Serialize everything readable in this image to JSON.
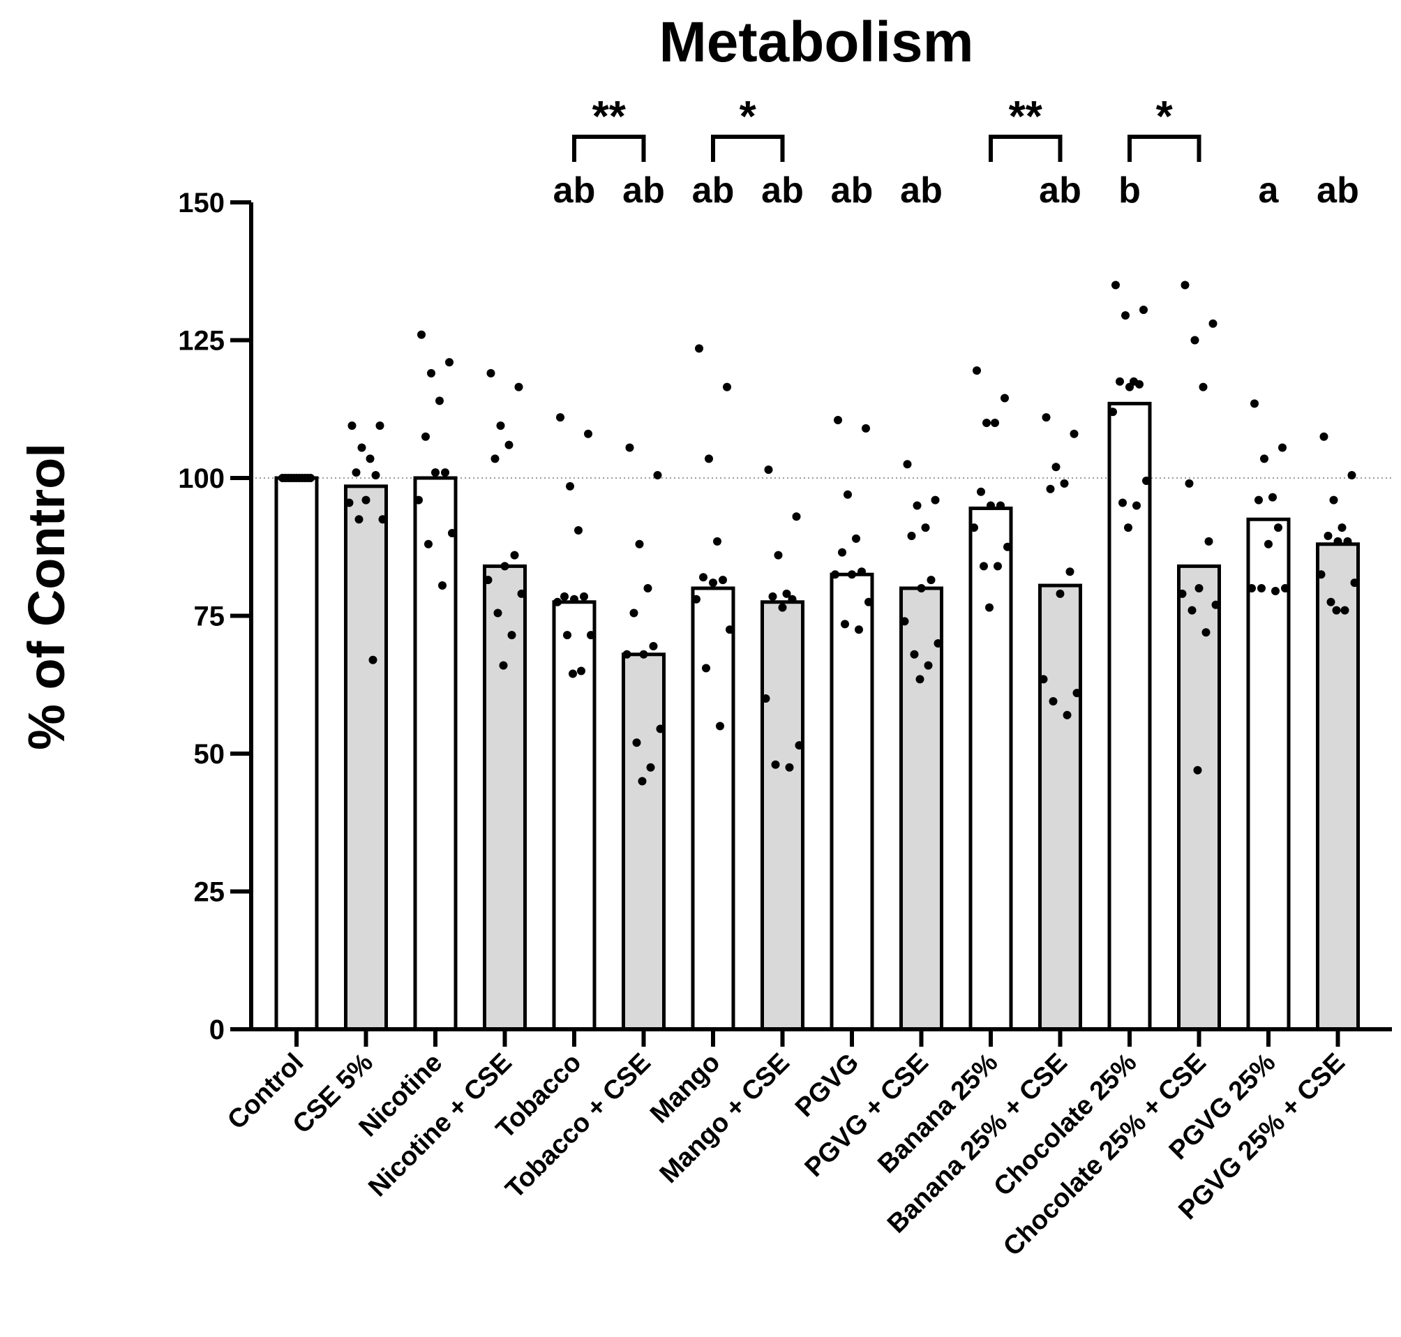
{
  "chart_data": {
    "type": "bar",
    "title": "Metabolism",
    "xlabel": "",
    "ylabel": "% of Control",
    "ylim": [
      0,
      150
    ],
    "yticks": [
      0,
      25,
      50,
      75,
      100,
      125,
      150
    ],
    "reference_line": 100,
    "grid": false,
    "legend": "none",
    "categories": [
      "Control",
      "CSE 5%",
      "Nicotine",
      "Nicotine + CSE",
      "Tobacco",
      "Tobacco + CSE",
      "Mango",
      "Mango + CSE",
      "PGVG",
      "PGVG + CSE",
      "Banana 25%",
      "Banana 25% + CSE",
      "Chocolate 25%",
      "Chocolate 25% + CSE",
      "PGVG 25%",
      "PGVG 25% + CSE"
    ],
    "values": [
      100,
      98.5,
      100,
      84,
      77.5,
      68,
      80,
      77.5,
      82.5,
      80,
      94.5,
      80.5,
      113.5,
      84,
      92.5,
      88
    ],
    "points": [
      [
        100,
        100,
        100,
        100,
        100,
        100,
        100,
        100,
        100,
        100,
        100
      ],
      [
        109.5,
        109.5,
        105.5,
        103.5,
        101,
        100.5,
        96,
        95.5,
        92.5,
        92.5,
        67
      ],
      [
        126,
        121,
        119,
        114,
        107.5,
        101,
        101,
        96,
        90,
        88,
        80.5
      ],
      [
        119,
        116.5,
        109.5,
        106,
        103.5,
        86,
        84,
        81.5,
        79,
        75.5,
        71.5,
        66
      ],
      [
        111,
        108,
        98.5,
        90.5,
        78.5,
        78.5,
        78,
        77.5,
        71.5,
        71.5,
        65,
        64.5
      ],
      [
        105.5,
        100.5,
        88,
        80,
        75.5,
        69.5,
        68,
        68,
        54.5,
        52,
        47.5,
        45
      ],
      [
        123.5,
        116.5,
        103.5,
        88.5,
        82,
        81.5,
        81,
        78,
        72.5,
        65.5,
        55
      ],
      [
        101.5,
        93,
        86,
        79,
        78.5,
        78,
        76.5,
        60,
        51.5,
        48,
        47.5
      ],
      [
        110.5,
        109,
        97,
        89,
        86.5,
        83,
        82.5,
        82.5,
        77.5,
        73.5,
        72.5
      ],
      [
        102.5,
        96,
        95,
        91,
        89.5,
        81.5,
        80,
        74,
        70,
        68,
        66,
        63.5
      ],
      [
        119.5,
        114.5,
        110,
        110,
        97.5,
        95,
        95,
        91,
        87.5,
        84,
        84,
        76.5
      ],
      [
        111,
        108,
        102,
        99,
        98,
        83,
        79,
        63.5,
        61,
        59.5,
        57
      ],
      [
        135,
        130.5,
        129.5,
        117.5,
        117.5,
        117,
        116.5,
        112,
        99.5,
        95.5,
        95,
        91
      ],
      [
        135,
        128,
        125,
        116.5,
        99,
        88.5,
        80,
        79,
        77,
        76,
        72,
        47
      ],
      [
        113.5,
        105.5,
        103.5,
        96.5,
        96,
        91,
        88,
        80,
        80,
        80,
        79.5
      ],
      [
        107.5,
        100.5,
        96,
        91,
        89.5,
        88.5,
        88.5,
        82.5,
        81,
        77.5,
        76,
        76
      ]
    ],
    "fills": [
      "#ffffff",
      "#d9d9d9",
      "#ffffff",
      "#d9d9d9",
      "#ffffff",
      "#d9d9d9",
      "#ffffff",
      "#d9d9d9",
      "#ffffff",
      "#d9d9d9",
      "#ffffff",
      "#d9d9d9",
      "#ffffff",
      "#d9d9d9",
      "#ffffff",
      "#d9d9d9"
    ],
    "group_letters": [
      {
        "x": 4,
        "text": "ab"
      },
      {
        "x": 5,
        "text": "ab"
      },
      {
        "x": 6,
        "text": "ab"
      },
      {
        "x": 7,
        "text": "ab"
      },
      {
        "x": 8,
        "text": "ab"
      },
      {
        "x": 9,
        "text": "ab"
      },
      {
        "x": 11,
        "text": "ab"
      },
      {
        "x": 12,
        "text": "b"
      },
      {
        "x": 14,
        "text": "a"
      },
      {
        "x": 15,
        "text": "ab"
      }
    ],
    "significance": [
      {
        "from": 4,
        "to": 5,
        "text": "**"
      },
      {
        "from": 6,
        "to": 7,
        "text": "*"
      },
      {
        "from": 10,
        "to": 11,
        "text": "**"
      },
      {
        "from": 12,
        "to": 13,
        "text": "*"
      }
    ]
  }
}
